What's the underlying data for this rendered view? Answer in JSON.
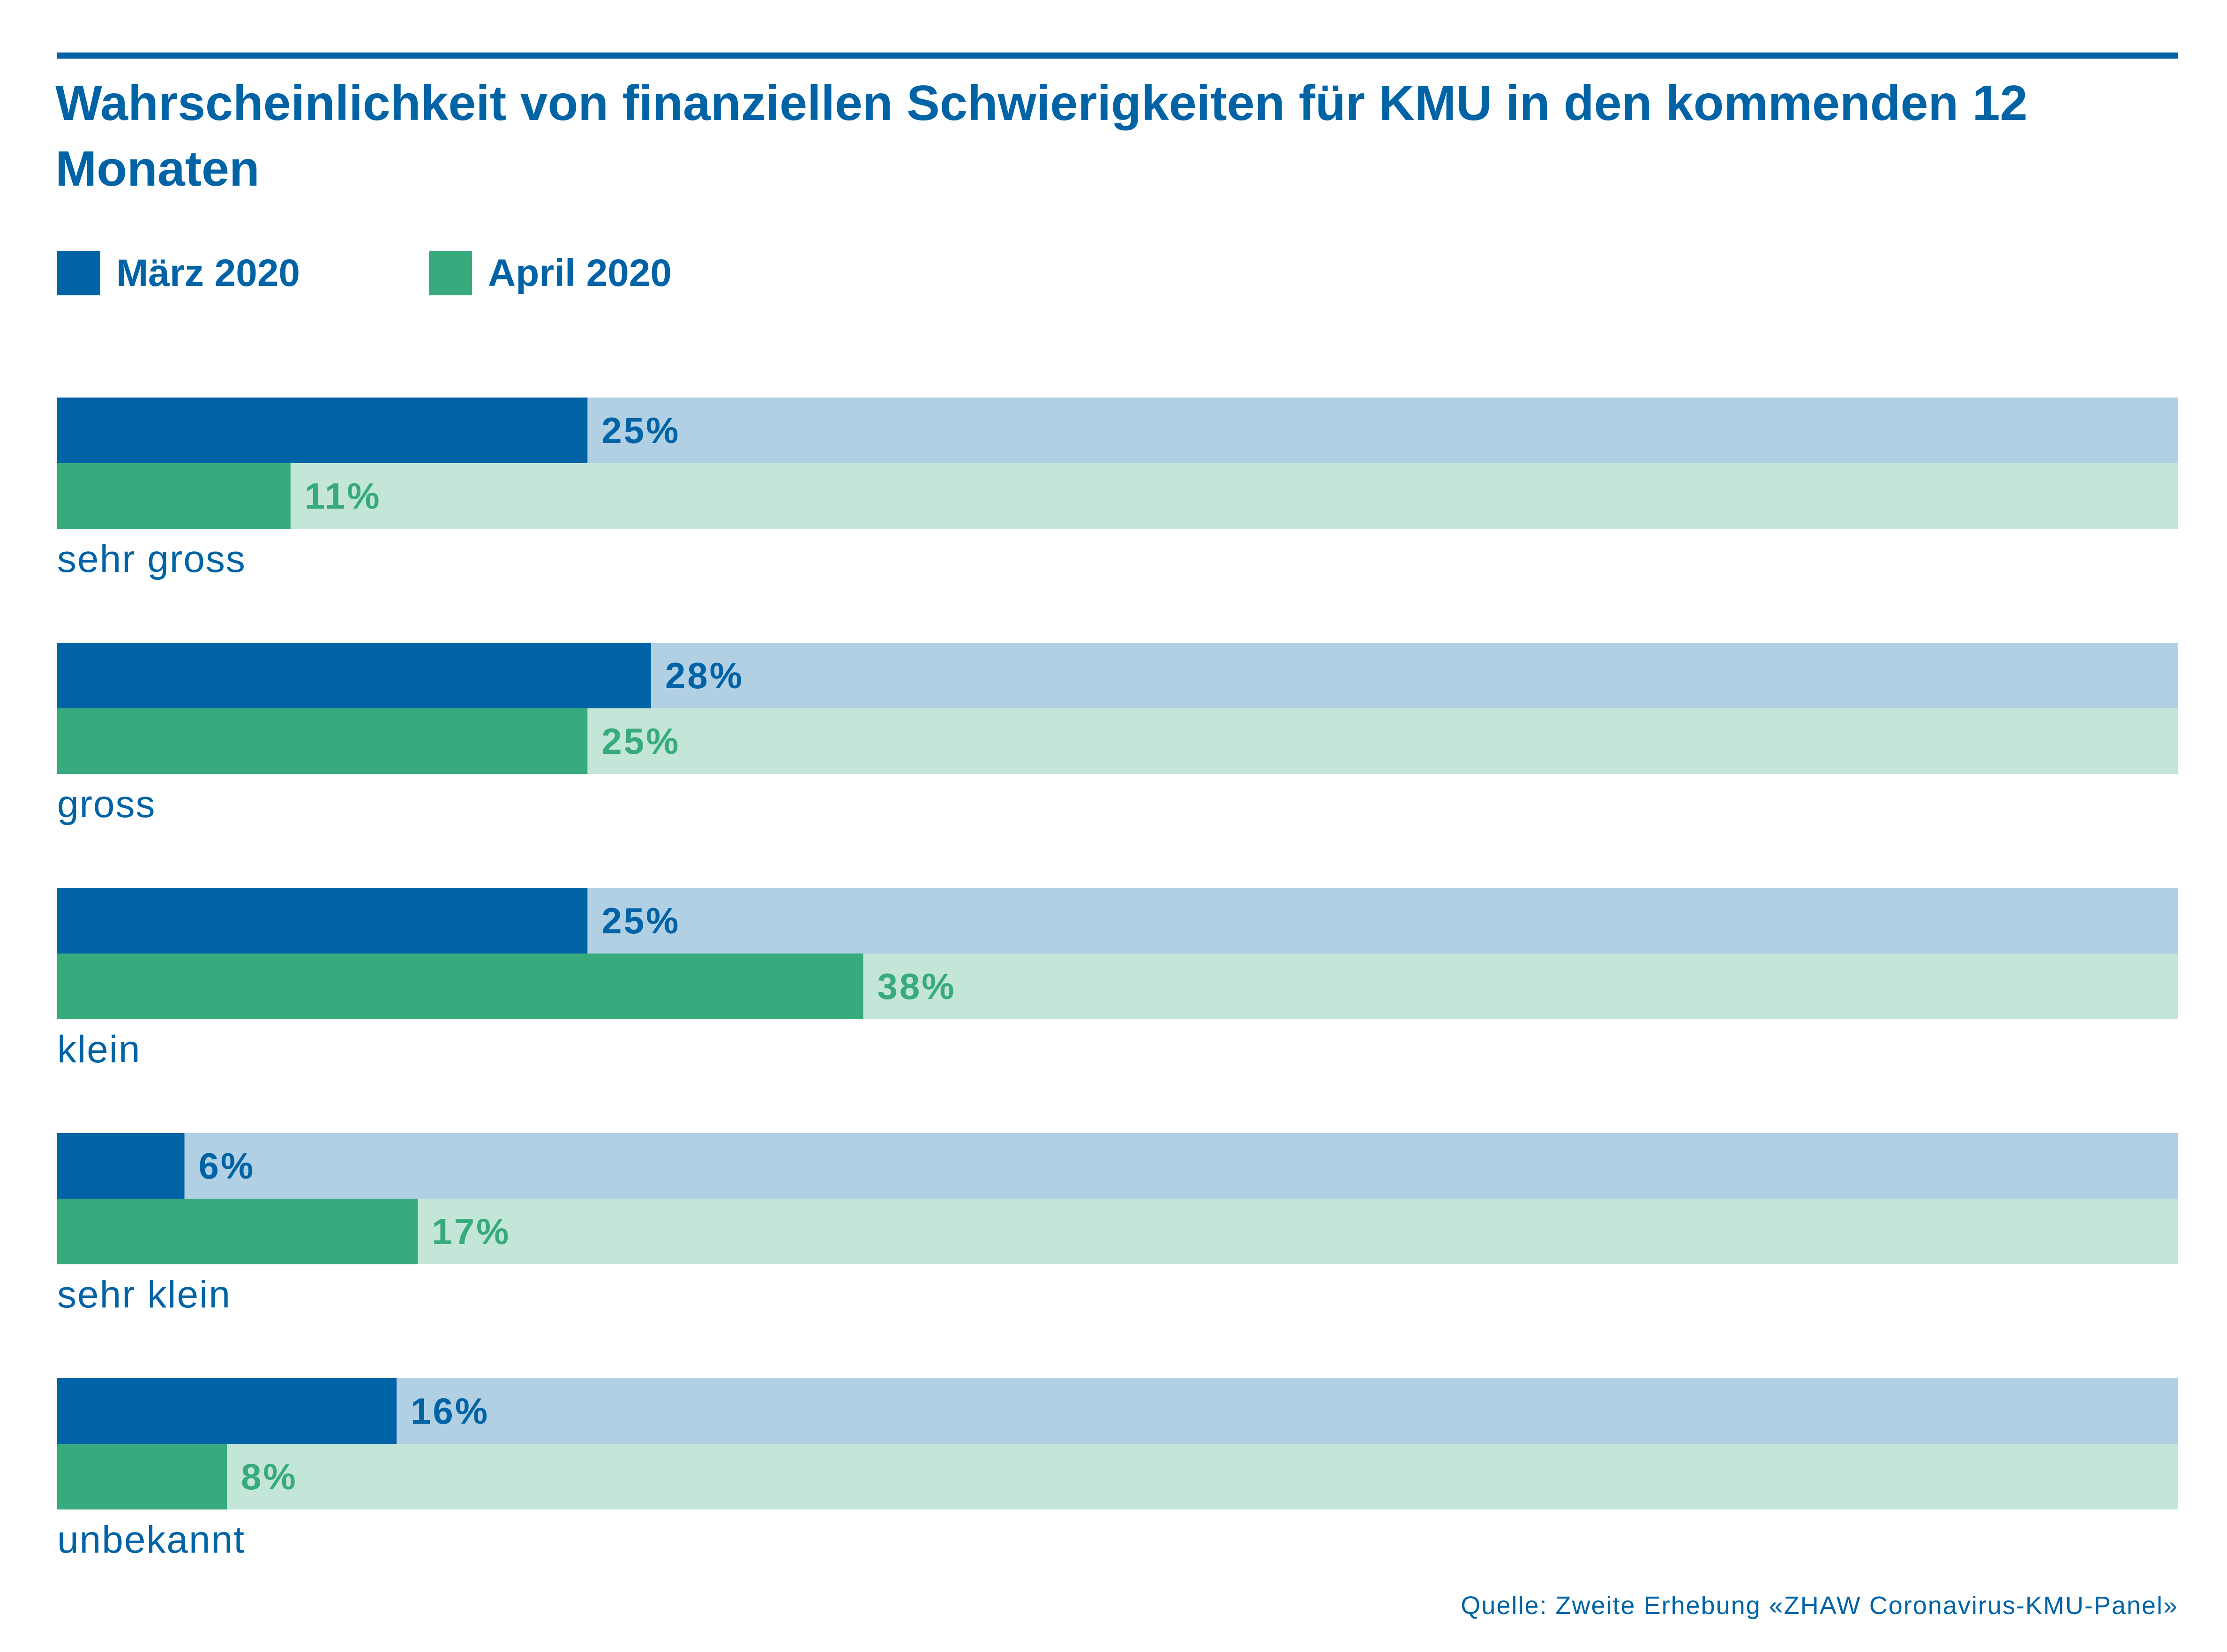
{
  "title": "Wahrscheinlichkeit von finanziellen Schwierigkeiten für KMU in den kommenden 12 Monaten",
  "source": "Quelle: Zweite Erhebung «ZHAW Coronavirus-KMU-Panel»",
  "colors": {
    "march": "#0063a6",
    "march_track": "#b1d0e4",
    "april": "#38ab7e",
    "april_track": "#c4e6d8",
    "text": "#0063a6"
  },
  "chart_data": {
    "type": "bar",
    "orientation": "horizontal",
    "categories": [
      "sehr gross",
      "gross",
      "klein",
      "sehr klein",
      "unbekannt"
    ],
    "series": [
      {
        "name": "März 2020",
        "values": [
          25,
          28,
          25,
          6,
          16
        ],
        "labels": [
          "25%",
          "28%",
          "25%",
          "6%",
          "16%"
        ]
      },
      {
        "name": "April 2020",
        "values": [
          11,
          25,
          38,
          17,
          8
        ],
        "labels": [
          "11%",
          "25%",
          "38%",
          "17%",
          "8%"
        ]
      }
    ],
    "xlim": [
      0,
      100
    ],
    "grid": false,
    "legend_position": "top-left"
  }
}
